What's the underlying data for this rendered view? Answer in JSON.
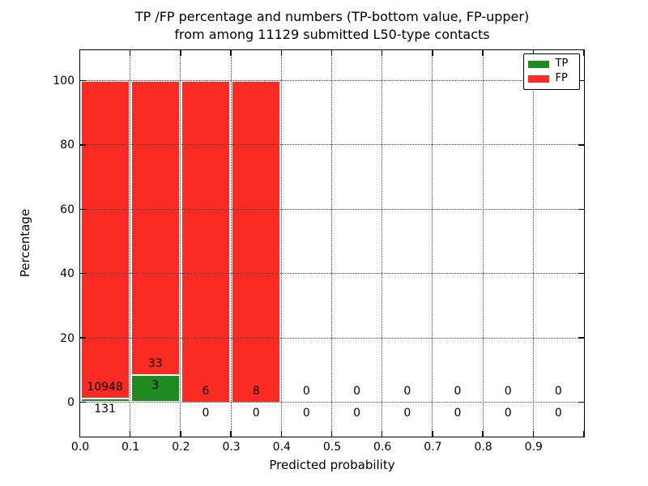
{
  "title": {
    "line1": "TP /FP percentage and numbers (TP-bottom value, FP-upper)",
    "line2": "from among 11129 submitted L50-type contacts"
  },
  "axes": {
    "xlabel": "Predicted probability",
    "ylabel": "Percentage",
    "x_tick_labels": [
      "0.0",
      "0.1",
      "0.2",
      "0.3",
      "0.4",
      "0.5",
      "0.6",
      "0.7",
      "0.8",
      "0.9"
    ],
    "y_tick_labels": [
      "0",
      "20",
      "40",
      "60",
      "80",
      "100"
    ]
  },
  "legend": {
    "items": [
      {
        "label": "TP",
        "color": "#1e8a20"
      },
      {
        "label": "FP",
        "color": "#f92b22"
      }
    ]
  },
  "chart_data": {
    "type": "bar",
    "stacked": true,
    "title": "TP /FP percentage and numbers (TP-bottom value, FP-upper) from among 11129 submitted L50-type contacts",
    "xlabel": "Predicted probability",
    "ylabel": "Percentage",
    "total_submitted": 11129,
    "bin_edges": [
      0.0,
      0.1,
      0.2,
      0.3,
      0.4,
      0.5,
      0.6,
      0.7,
      0.8,
      0.9,
      1.0
    ],
    "y_tick_values": [
      0,
      20,
      40,
      60,
      80,
      100
    ],
    "xlim": [
      0.0,
      1.0
    ],
    "ylim": [
      -10.6,
      109.6
    ],
    "grid": "dotted both axes",
    "legend_position": "upper right",
    "series": [
      {
        "name": "TP",
        "color": "#1e8a20",
        "counts": [
          131,
          3,
          0,
          0,
          0,
          0,
          0,
          0,
          0,
          0
        ]
      },
      {
        "name": "FP",
        "color": "#f92b22",
        "counts": [
          10948,
          33,
          6,
          8,
          0,
          0,
          0,
          0,
          0,
          0
        ]
      }
    ],
    "bars_note_in_pixels": "each non-empty bin is normalized to 100%: TP segment = TP/(TP+FP)*100 at bottom (green), FP fills to 100 (red); bins 0.4-1.0 are empty"
  }
}
